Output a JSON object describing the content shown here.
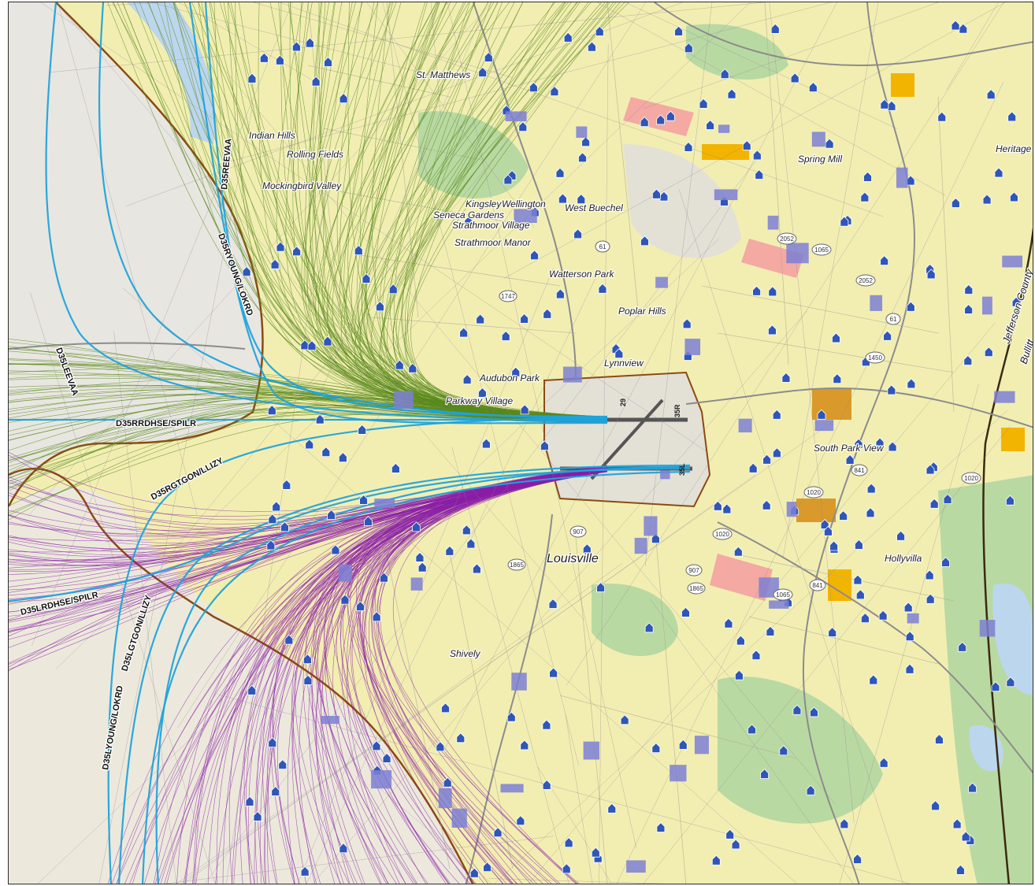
{
  "map": {
    "colors": {
      "residential": "#f2eeb2",
      "residential_alt": "#f7f08a",
      "commercial": "#f4a9a2",
      "industrial": "#f3b400",
      "parks": "#b9d9a2",
      "water": "#bcd6ee",
      "school_marker": "#2f56b8",
      "institutional": "#7d7fd3",
      "airport": "#e3e0d6",
      "county_line": "#8b4a12",
      "departure_west": "#5a8a1e",
      "departure_southwest": "#8a1ea6",
      "flight_track": "#1fa3dc",
      "roads": "#8c8c8c"
    },
    "places": {
      "st_matthews": "St. Matthews",
      "indian_hills": "Indian Hills",
      "rolling_fields": "Rolling Fields",
      "mockingbird_valley": "Mockingbird Valley",
      "kingsley": "Kingsley",
      "wellington": "Wellington",
      "seneca_gardens": "Seneca Gardens",
      "strathmoor_village": "Strathmoor Village",
      "strathmoor_manor": "Strathmoor Manor",
      "west_buechel": "West Buechel",
      "watterson_park": "Watterson Park",
      "poplar_hills": "Poplar Hills",
      "lynnview": "Lynnview",
      "audubon_park": "Audubon Park",
      "parkway_village": "Parkway Village",
      "spring_mill": "Spring Mill",
      "heritage": "Heritage",
      "south_park_view": "South Park View",
      "louisville": "Louisville",
      "hollyvilla": "Hollyvilla",
      "shively": "Shively",
      "jefferson_county": "Jefferson County",
      "bullitt": "Bullitt"
    },
    "routes": {
      "d35reevaa": "D35REEVAA",
      "d35ryoung_lokrd": "D35RYOUNG/LOKRD",
      "d35leevaa": "D35LEEVAA",
      "d35rrdhse_spilr": "D35RRDHSE/SPILR",
      "d35rgtgon_llizy": "D35RGTGON/LLIZY",
      "d35lrdhse_spilr": "D35LRDHSE/SPILR",
      "d35lgtgon_llizy": "D35LGTGON/LLIZY",
      "d35lyoung_lokrd": "D35LYOUNG/LOKRD"
    },
    "runways": {
      "r35r": "35R",
      "r35l": "35L",
      "r29": "29"
    },
    "shields": {
      "s1": "1020",
      "s2": "907",
      "s3": "1865",
      "s4": "1065",
      "s5": "841",
      "s6": "2052",
      "s7": "1065",
      "s8": "61",
      "s9": "1450",
      "s10": "1020",
      "s11": "1865",
      "s12": "907",
      "s13": "2052",
      "s14": "61",
      "s15": "1747",
      "s16": "841",
      "s17": "1020"
    }
  }
}
